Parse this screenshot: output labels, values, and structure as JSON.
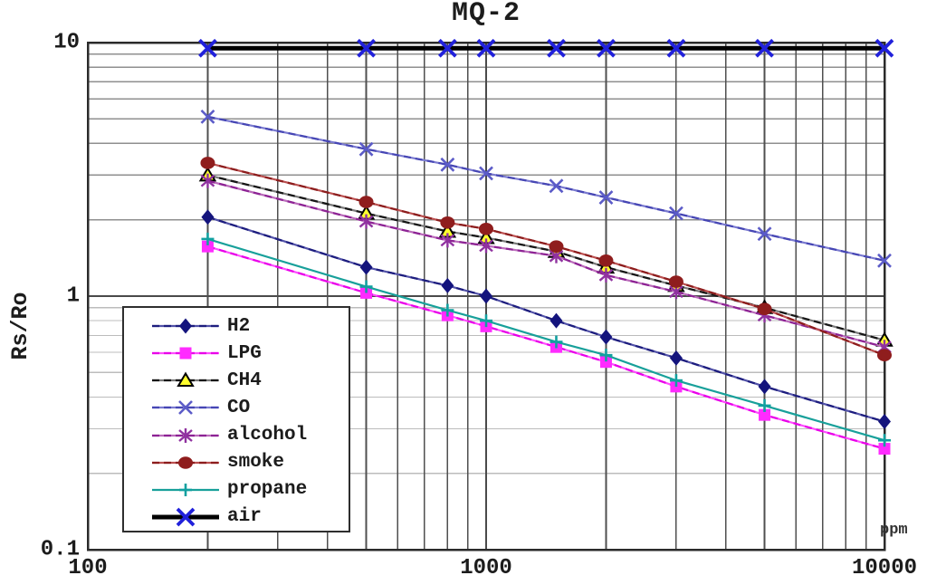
{
  "chart_data": {
    "type": "line",
    "title": "MQ-2",
    "xlabel": "ppm",
    "ylabel": "Rs/Ro",
    "x_scale": "log",
    "y_scale": "log",
    "xlim": [
      100,
      10000
    ],
    "ylim": [
      0.1,
      10
    ],
    "grid": true,
    "legend_position": "lower-left",
    "x_ticks": [
      {
        "value": 100,
        "label": "100"
      },
      {
        "value": 1000,
        "label": "1000"
      },
      {
        "value": 10000,
        "label": "10000"
      }
    ],
    "y_ticks": [
      {
        "value": 10,
        "label": "10"
      },
      {
        "value": 1,
        "label": "1"
      },
      {
        "value": 0.1,
        "label": "0.1"
      }
    ],
    "x": [
      200,
      500,
      800,
      1000,
      1500,
      2000,
      3000,
      5000,
      10000
    ],
    "series": [
      {
        "name": "H2",
        "marker": "diamond",
        "line_color": "#5252a8",
        "dash_color": "#1d1d7e",
        "marker_color": "#14147d",
        "values": [
          2.05,
          1.3,
          1.1,
          1.0,
          0.8,
          0.69,
          0.57,
          0.44,
          0.32
        ]
      },
      {
        "name": "LPG",
        "marker": "square",
        "line_color": "#ff4dff",
        "dash_color": "#e800e8",
        "marker_color": "#ff2bff",
        "values": [
          1.57,
          1.03,
          0.84,
          0.76,
          0.63,
          0.55,
          0.44,
          0.34,
          0.25
        ]
      },
      {
        "name": "CH4",
        "marker": "triangle",
        "line_color": "#7a7a7a",
        "dash_color": "#161616",
        "marker_color": "#ffff2e",
        "values": [
          3.0,
          2.12,
          1.8,
          1.7,
          1.5,
          1.3,
          1.1,
          0.9,
          0.67
        ]
      },
      {
        "name": "CO",
        "marker": "x",
        "line_color": "#7a7ad0",
        "dash_color": "#4646b4",
        "marker_color": "#5b5bc8",
        "values": [
          5.1,
          3.8,
          3.3,
          3.05,
          2.72,
          2.45,
          2.12,
          1.76,
          1.38
        ]
      },
      {
        "name": "alcohol",
        "marker": "asterisk",
        "line_color": "#bb6cbb",
        "dash_color": "#8d2394",
        "marker_color": "#9032a0",
        "values": [
          2.85,
          1.97,
          1.66,
          1.58,
          1.44,
          1.21,
          1.04,
          0.84,
          0.63
        ]
      },
      {
        "name": "smoke",
        "marker": "circle",
        "line_color": "#bb5050",
        "dash_color": "#8c1d1d",
        "marker_color": "#8f1d1d",
        "values": [
          3.35,
          2.35,
          1.95,
          1.84,
          1.57,
          1.38,
          1.14,
          0.89,
          0.585
        ]
      },
      {
        "name": "propane",
        "marker": "plus",
        "line_color": "#18a09a",
        "dash_color": null,
        "marker_color": "#12a0a0",
        "values": [
          1.68,
          1.09,
          0.88,
          0.8,
          0.66,
          0.585,
          0.465,
          0.37,
          0.27
        ]
      },
      {
        "name": "air",
        "marker": "xbold",
        "line_color": "#000000",
        "dash_color": null,
        "marker_color": "#2121db",
        "values": [
          9.5,
          9.5,
          9.5,
          9.5,
          9.5,
          9.5,
          9.5,
          9.5,
          9.5
        ]
      }
    ],
    "palette": {
      "frame": "#2b2b2b",
      "major_grid": "#4a4a4a",
      "v_minor_grid": "#4f4f4f",
      "h_minor_grid_upper": "#8f8f8f",
      "h_minor_grid_lower": "#bcbcbc",
      "text": "#1c1c1c"
    }
  }
}
